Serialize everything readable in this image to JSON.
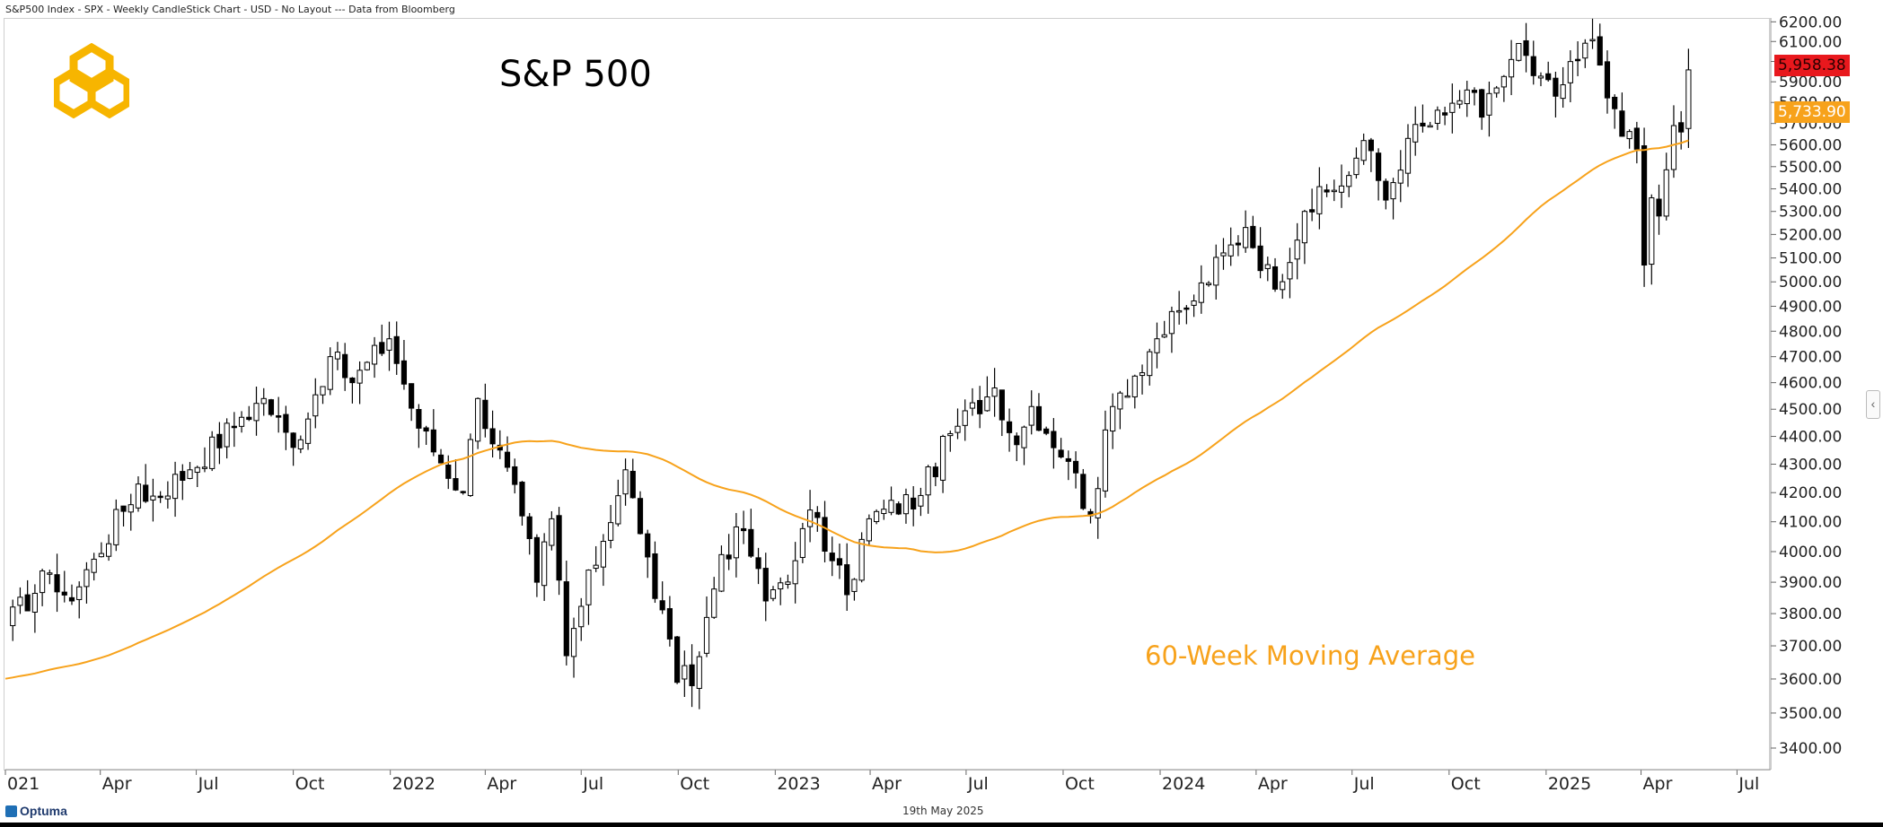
{
  "header": {
    "source_line": "S&P500 Index - SPX - Weekly CandleStick Chart - USD - No Layout --- Data from Bloomberg"
  },
  "logo": {
    "name": "hexagon-logo",
    "color": "#f7b500"
  },
  "footer": {
    "brand": "Optuma",
    "date": "19th May 2025"
  },
  "labels": {
    "last_price": "5,958.38",
    "ma_value": "5,733.90"
  },
  "colors": {
    "ma_line": "#f7a21b",
    "last_price_tag": "#e8181d",
    "ma_tag": "#f7a21b",
    "up_candle": "#ffffff",
    "down_candle": "#000000"
  },
  "chart_data": {
    "type": "candlestick",
    "title": "S&P 500",
    "annotation": "60-Week Moving Average",
    "ylim": [
      3340,
      6220
    ],
    "y_ticks": [
      "3400.00",
      "3500.00",
      "3600.00",
      "3700.00",
      "3800.00",
      "3900.00",
      "4000.00",
      "4100.00",
      "4200.00",
      "4300.00",
      "4400.00",
      "4500.00",
      "4600.00",
      "4700.00",
      "4800.00",
      "4900.00",
      "5000.00",
      "5100.00",
      "5200.00",
      "5300.00",
      "5400.00",
      "5500.00",
      "5600.00",
      "5700.00",
      "5800.00",
      "5900.00",
      "6000.00",
      "6100.00",
      "6200.00"
    ],
    "x_start": "2021-01-01",
    "x_end": "2025-08-02",
    "x_ticks": [
      {
        "label": "021",
        "date": "2021-01-01"
      },
      {
        "label": "Apr",
        "date": "2021-04-01"
      },
      {
        "label": "Jul",
        "date": "2021-07-01"
      },
      {
        "label": "Oct",
        "date": "2021-10-01"
      },
      {
        "label": "2022",
        "date": "2022-01-01"
      },
      {
        "label": "Apr",
        "date": "2022-04-01"
      },
      {
        "label": "Jul",
        "date": "2022-07-01"
      },
      {
        "label": "Oct",
        "date": "2022-10-01"
      },
      {
        "label": "2023",
        "date": "2023-01-01"
      },
      {
        "label": "Apr",
        "date": "2023-04-01"
      },
      {
        "label": "Jul",
        "date": "2023-07-01"
      },
      {
        "label": "Oct",
        "date": "2023-10-01"
      },
      {
        "label": "2024",
        "date": "2024-01-01"
      },
      {
        "label": "Apr",
        "date": "2024-04-01"
      },
      {
        "label": "Jul",
        "date": "2024-07-01"
      },
      {
        "label": "Oct",
        "date": "2024-10-01"
      },
      {
        "label": "2025",
        "date": "2025-01-01"
      },
      {
        "label": "Apr",
        "date": "2025-04-01"
      },
      {
        "label": "Jul",
        "date": "2025-07-01"
      }
    ],
    "last_close": 5958.38,
    "ma_last": 5733.9,
    "weekly_close_anchors": [
      [
        "2021-01-01",
        3760
      ],
      [
        "2021-02-12",
        3930
      ],
      [
        "2021-03-05",
        3840
      ],
      [
        "2021-03-26",
        3975
      ],
      [
        "2021-05-07",
        4230
      ],
      [
        "2021-05-14",
        4170
      ],
      [
        "2021-06-25",
        4280
      ],
      [
        "2021-08-13",
        4470
      ],
      [
        "2021-09-03",
        4540
      ],
      [
        "2021-10-01",
        4360
      ],
      [
        "2021-11-05",
        4700
      ],
      [
        "2021-11-26",
        4600
      ],
      [
        "2021-12-31",
        4770
      ],
      [
        "2022-01-28",
        4430
      ],
      [
        "2022-03-11",
        4200
      ],
      [
        "2022-03-25",
        4540
      ],
      [
        "2022-05-06",
        4120
      ],
      [
        "2022-05-20",
        3900
      ],
      [
        "2022-06-03",
        4110
      ],
      [
        "2022-06-17",
        3670
      ],
      [
        "2022-08-12",
        4280
      ],
      [
        "2022-08-26",
        4060
      ],
      [
        "2022-09-30",
        3590
      ],
      [
        "2022-10-07",
        3640
      ],
      [
        "2022-10-14",
        3580
      ],
      [
        "2022-11-11",
        3990
      ],
      [
        "2022-12-02",
        4070
      ],
      [
        "2022-12-23",
        3840
      ],
      [
        "2023-01-20",
        3970
      ],
      [
        "2023-02-03",
        4140
      ],
      [
        "2023-02-24",
        3970
      ],
      [
        "2023-03-10",
        3860
      ],
      [
        "2023-03-31",
        4110
      ],
      [
        "2023-05-19",
        4190
      ],
      [
        "2023-06-16",
        4410
      ],
      [
        "2023-07-28",
        4580
      ],
      [
        "2023-08-18",
        4370
      ],
      [
        "2023-09-01",
        4510
      ],
      [
        "2023-10-06",
        4310
      ],
      [
        "2023-10-27",
        4120
      ],
      [
        "2023-11-17",
        4510
      ],
      [
        "2023-12-29",
        4770
      ],
      [
        "2024-01-26",
        4890
      ],
      [
        "2024-03-22",
        5230
      ],
      [
        "2024-04-19",
        4970
      ],
      [
        "2024-05-17",
        5300
      ],
      [
        "2024-06-28",
        5460
      ],
      [
        "2024-07-12",
        5620
      ],
      [
        "2024-08-02",
        5350
      ],
      [
        "2024-08-23",
        5630
      ],
      [
        "2024-09-27",
        5740
      ],
      [
        "2024-10-18",
        5860
      ],
      [
        "2024-11-01",
        5730
      ],
      [
        "2024-11-15",
        5870
      ],
      [
        "2024-12-06",
        6090
      ],
      [
        "2024-12-20",
        5930
      ],
      [
        "2025-01-10",
        5830
      ],
      [
        "2025-02-14",
        6110
      ],
      [
        "2025-03-07",
        5770
      ],
      [
        "2025-03-14",
        5640
      ],
      [
        "2025-03-28",
        5580
      ],
      [
        "2025-04-04",
        5070
      ],
      [
        "2025-04-11",
        5360
      ],
      [
        "2025-04-18",
        5280
      ],
      [
        "2025-05-02",
        5690
      ],
      [
        "2025-05-09",
        5660
      ],
      [
        "2025-05-16",
        5958.38
      ]
    ]
  }
}
